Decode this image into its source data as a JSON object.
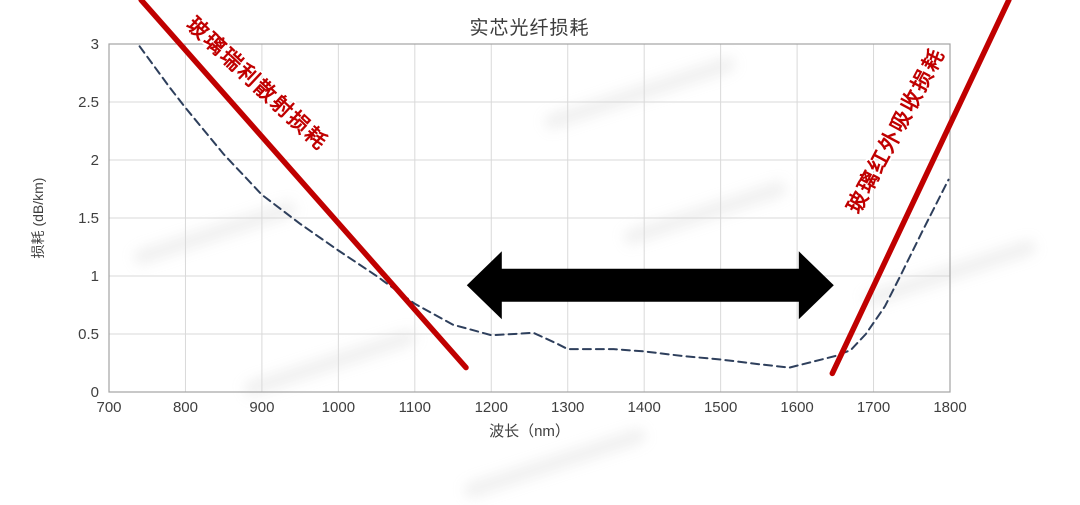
{
  "chart_data": {
    "type": "line",
    "title": "实芯光纤损耗",
    "xlabel": "波长（nm）",
    "ylabel": "损耗 (dB/km)",
    "xlim": [
      700,
      1800
    ],
    "ylim": [
      0,
      3
    ],
    "x_ticks": [
      700,
      800,
      900,
      1000,
      1100,
      1200,
      1300,
      1400,
      1500,
      1600,
      1700,
      1800
    ],
    "y_ticks": [
      0,
      0.5,
      1,
      1.5,
      2,
      2.5,
      3
    ],
    "grid": true,
    "legend": "none",
    "colors": {
      "background": "#ffffff",
      "grid": "#d9d9d9",
      "axis": "#a3a3a3",
      "text": "#3f3f3f",
      "curve_navy": "#2e3f5c",
      "annotation_red": "#c00000",
      "arrow_black": "#000000"
    },
    "series": [
      {
        "id": "total-loss",
        "name": "实芯光纤损耗",
        "style": "dashed",
        "color": "#2e3f5c",
        "width": 2,
        "points": [
          [
            740,
            2.98
          ],
          [
            780,
            2.62
          ],
          [
            800,
            2.45
          ],
          [
            850,
            2.05
          ],
          [
            900,
            1.7
          ],
          [
            950,
            1.45
          ],
          [
            1000,
            1.22
          ],
          [
            1050,
            1.0
          ],
          [
            1100,
            0.76
          ],
          [
            1150,
            0.58
          ],
          [
            1200,
            0.49
          ],
          [
            1230,
            0.5
          ],
          [
            1255,
            0.51
          ],
          [
            1285,
            0.42
          ],
          [
            1300,
            0.37
          ],
          [
            1360,
            0.37
          ],
          [
            1400,
            0.35
          ],
          [
            1450,
            0.31
          ],
          [
            1500,
            0.28
          ],
          [
            1550,
            0.24
          ],
          [
            1590,
            0.21
          ],
          [
            1620,
            0.26
          ],
          [
            1650,
            0.31
          ],
          [
            1670,
            0.36
          ],
          [
            1690,
            0.5
          ],
          [
            1715,
            0.74
          ],
          [
            1735,
            1.0
          ],
          [
            1765,
            1.4
          ],
          [
            1798,
            1.83
          ]
        ]
      },
      {
        "id": "rayleigh-loss",
        "name": "玻璃瑞利散射损耗",
        "style": "solid",
        "color": "#c00000",
        "width": 5.5,
        "points": [
          [
            742,
            3.38
          ],
          [
            1167,
            0.21
          ]
        ]
      },
      {
        "id": "ir-loss",
        "name": "玻璃红外吸收损耗",
        "style": "solid",
        "color": "#c00000",
        "width": 5.5,
        "points": [
          [
            1646,
            0.16
          ],
          [
            1877,
            3.38
          ]
        ]
      }
    ],
    "annotations": {
      "labels": [
        {
          "text": "玻璃瑞利散射损耗",
          "x_nm": 895,
          "y_db_km": 2.66,
          "rotation_deg": 43,
          "color": "#c00000"
        },
        {
          "text": "玻璃红外吸收损耗",
          "x_nm": 1728,
          "y_db_km": 2.26,
          "rotation_deg": -62,
          "color": "#c00000"
        }
      ],
      "arrow": {
        "x_start_nm": 1168,
        "x_end_nm": 1648,
        "y_db_km": 0.92,
        "color": "#000000"
      }
    }
  }
}
